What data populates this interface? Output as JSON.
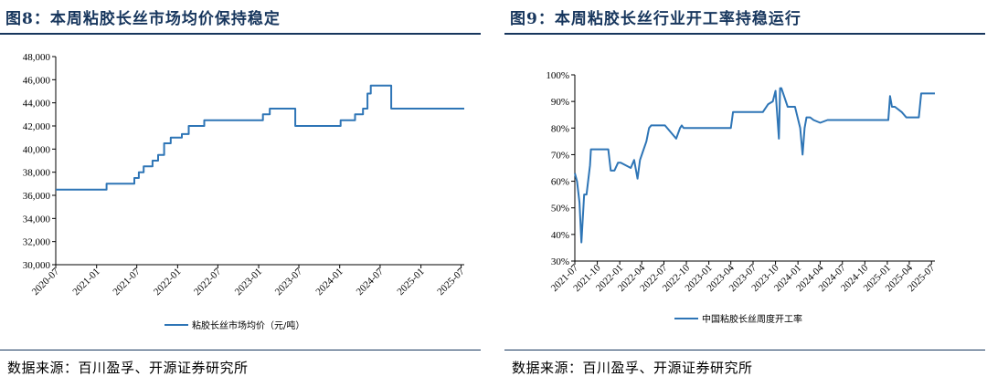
{
  "left": {
    "title": "图8：本周粘胶长丝市场均价保持稳定",
    "source": "数据来源：百川盈孚、开源证券研究所"
  },
  "right": {
    "title": "图9：本周粘胶长丝行业开工率持稳运行",
    "source": "数据来源：百川盈孚、开源证券研究所"
  },
  "colors": {
    "line": "#2e75b6",
    "title": "#17365d",
    "rule": "#17365d"
  },
  "chart_data": [
    {
      "type": "line",
      "legend": "top",
      "grid": false,
      "x_tick_labels": [
        "2020-07",
        "2021-01",
        "2021-07",
        "2022-01",
        "2022-07",
        "2023-01",
        "2023-07",
        "2024-01",
        "2024-07",
        "2025-01",
        "2025-07"
      ],
      "y_tick_labels": [
        "30,000",
        "32,000",
        "34,000",
        "36,000",
        "38,000",
        "40,000",
        "42,000",
        "44,000",
        "46,000",
        "48,000"
      ],
      "ylim": [
        30000,
        48000
      ],
      "xlim": [
        "2020-07-01",
        "2025-07-15"
      ],
      "series": [
        {
          "name": "粘胶长丝市场均价（元/吨）",
          "x": [
            "2020-07-01",
            "2021-02-15",
            "2021-02-15",
            "2021-06-20",
            "2021-06-20",
            "2021-07-10",
            "2021-07-10",
            "2021-08-01",
            "2021-08-01",
            "2021-09-10",
            "2021-09-10",
            "2021-10-05",
            "2021-10-05",
            "2021-11-01",
            "2021-11-01",
            "2021-12-01",
            "2021-12-01",
            "2022-01-20",
            "2022-01-20",
            "2022-02-20",
            "2022-02-20",
            "2022-05-01",
            "2022-05-01",
            "2022-06-01",
            "2022-06-01",
            "2023-01-20",
            "2023-01-20",
            "2023-02-20",
            "2023-02-20",
            "2023-06-15",
            "2023-06-15",
            "2024-01-05",
            "2024-01-05",
            "2024-03-10",
            "2024-03-10",
            "2024-04-15",
            "2024-04-15",
            "2024-05-05",
            "2024-05-05",
            "2024-05-20",
            "2024-05-20",
            "2024-08-20",
            "2024-08-20",
            "2025-07-15"
          ],
          "y": [
            36500,
            36500,
            37000,
            37000,
            37500,
            37500,
            38000,
            38000,
            38500,
            38500,
            39000,
            39000,
            39500,
            39500,
            40500,
            40500,
            41000,
            41000,
            41300,
            41300,
            42000,
            42000,
            42500,
            42500,
            42500,
            42500,
            43000,
            43000,
            43500,
            43500,
            42000,
            42000,
            42500,
            42500,
            43000,
            43000,
            43500,
            43500,
            44800,
            44800,
            45500,
            45500,
            43500,
            43500
          ]
        }
      ]
    },
    {
      "type": "line",
      "legend": "bottom",
      "grid": false,
      "x_tick_labels": [
        "2021-07",
        "2021-10",
        "2022-01",
        "2022-04",
        "2022-07",
        "2022-10",
        "2023-01",
        "2023-04",
        "2023-07",
        "2023-10",
        "2024-01",
        "2024-04",
        "2024-07",
        "2024-10",
        "2025-01",
        "2025-04",
        "2025-07"
      ],
      "y_tick_labels": [
        "30%",
        "40%",
        "50%",
        "60%",
        "70%",
        "80%",
        "90%",
        "100%"
      ],
      "ylim": [
        30,
        100
      ],
      "xlim": [
        "2021-07-01",
        "2025-07-15"
      ],
      "series": [
        {
          "name": "中国粘胶长丝周度开工率",
          "x": [
            "2021-07-01",
            "2021-07-10",
            "2021-07-20",
            "2021-07-28",
            "2021-08-08",
            "2021-08-18",
            "2021-09-01",
            "2021-09-05",
            "2021-09-15",
            "2021-10-01",
            "2021-11-15",
            "2021-11-25",
            "2021-12-10",
            "2021-12-25",
            "2022-01-05",
            "2022-02-15",
            "2022-03-01",
            "2022-03-15",
            "2022-03-25",
            "2022-04-05",
            "2022-04-20",
            "2022-05-01",
            "2022-05-10",
            "2022-05-20",
            "2022-06-01",
            "2022-06-20",
            "2022-07-05",
            "2022-08-20",
            "2022-09-05",
            "2022-09-12",
            "2022-09-20",
            "2022-10-01",
            "2022-11-01",
            "2023-04-01",
            "2023-04-10",
            "2023-07-01",
            "2023-07-10",
            "2023-08-01",
            "2023-08-10",
            "2023-09-01",
            "2023-09-20",
            "2023-10-01",
            "2023-10-15",
            "2023-10-20",
            "2023-10-25",
            "2023-11-20",
            "2023-12-05",
            "2023-12-20",
            "2024-01-10",
            "2024-01-20",
            "2024-01-28",
            "2024-02-05",
            "2024-02-20",
            "2024-03-05",
            "2024-04-01",
            "2024-05-01",
            "2024-06-01",
            "2024-07-01",
            "2024-08-01",
            "2024-09-01",
            "2025-01-05",
            "2025-01-12",
            "2025-01-20",
            "2025-02-01",
            "2025-03-01",
            "2025-03-20",
            "2025-04-10",
            "2025-05-10",
            "2025-05-20",
            "2025-07-15"
          ],
          "y": [
            63,
            60,
            52,
            37,
            55,
            55,
            66,
            72,
            72,
            72,
            72,
            64,
            64,
            67,
            67,
            65,
            68,
            61,
            68,
            71,
            75,
            80,
            81,
            81,
            81,
            81,
            81,
            76,
            80,
            81,
            80,
            80,
            80,
            80,
            86,
            86,
            86,
            86,
            86,
            89,
            90,
            94,
            76,
            95,
            95,
            88,
            88,
            88,
            80,
            70,
            80,
            84,
            84,
            83,
            82,
            83,
            83,
            83,
            83,
            83,
            83,
            92,
            88,
            88,
            86,
            84,
            84,
            84,
            93,
            93
          ]
        }
      ]
    }
  ]
}
